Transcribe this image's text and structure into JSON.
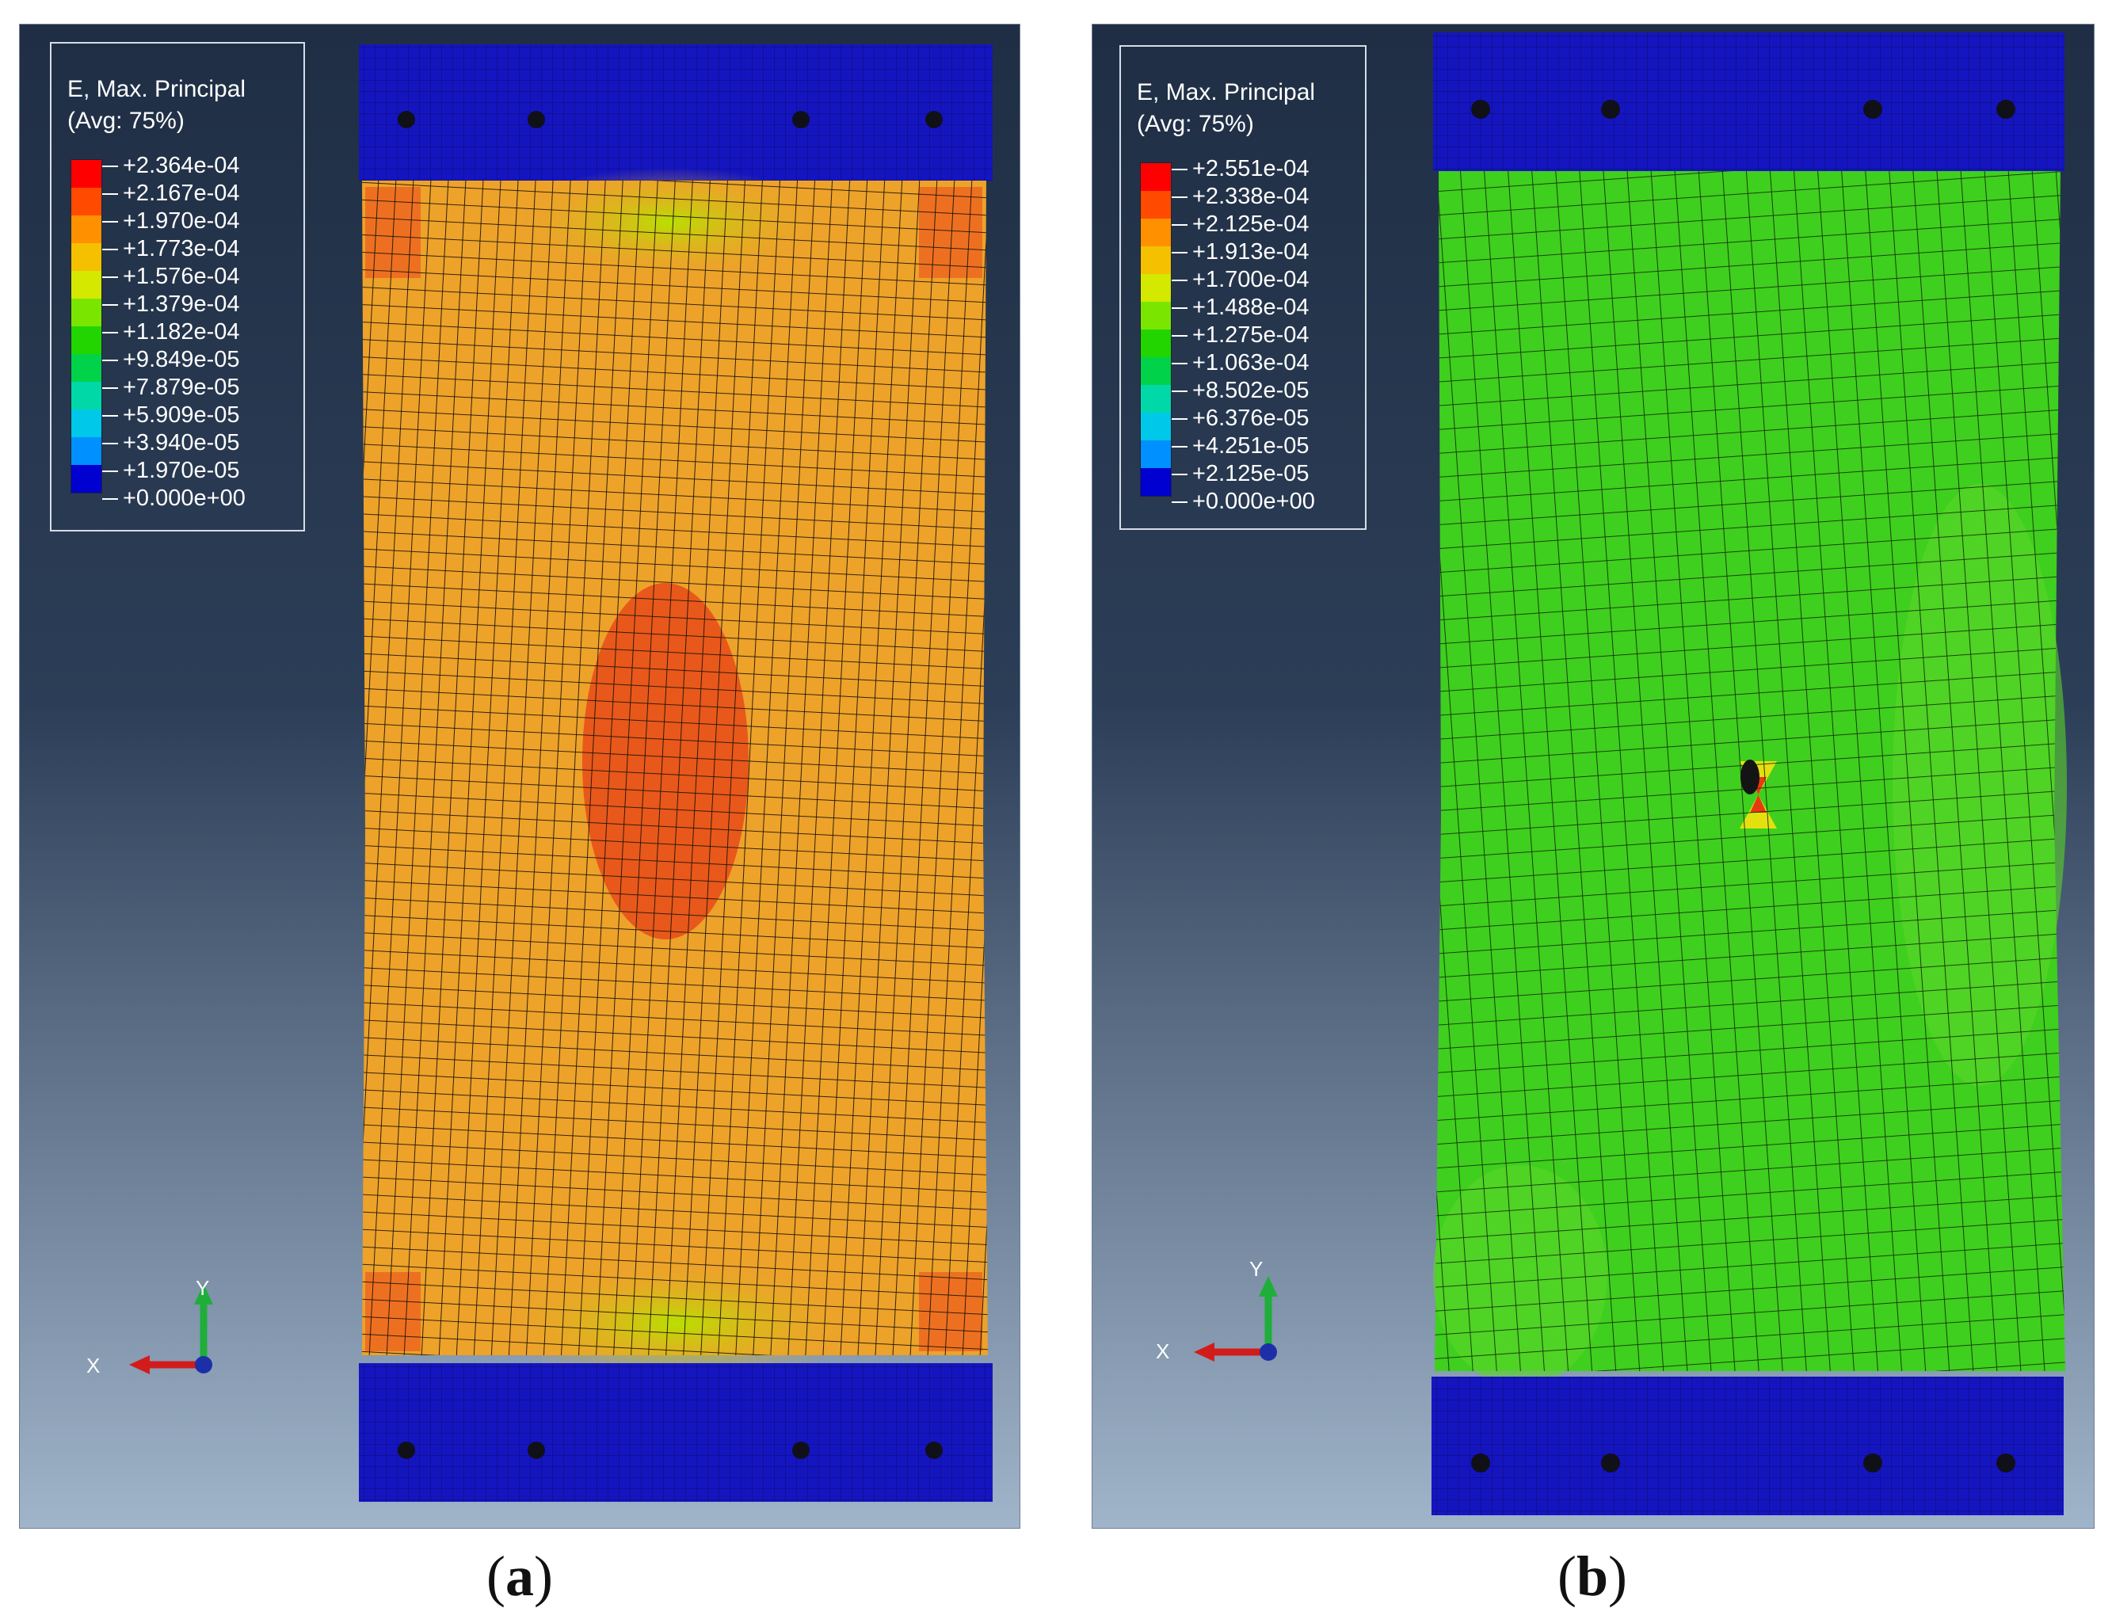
{
  "colors": {
    "bg_top": "#1f2e44",
    "bg_bottom": "#a0b4ca",
    "clamp": "#1515c0",
    "mesh_line": "#1a1208",
    "legend_scale": [
      "#ff0000",
      "#ff4a00",
      "#ff9000",
      "#f4c000",
      "#d4e800",
      "#7ae600",
      "#22d400",
      "#00d24a",
      "#00d8a8",
      "#00c8e8",
      "#0090ff",
      "#2444ff",
      "#0000d0"
    ]
  },
  "panels": [
    {
      "id": "a",
      "caption_open": "(",
      "caption_letter": "a",
      "caption_close": ")",
      "legend_title_line1": "E, Max. Principal",
      "legend_title_line2": "(Avg: 75%)",
      "legend_values": [
        "+2.364e-04",
        "+2.167e-04",
        "+1.970e-04",
        "+1.773e-04",
        "+1.576e-04",
        "+1.379e-04",
        "+1.182e-04",
        "+9.849e-05",
        "+7.879e-05",
        "+5.909e-05",
        "+3.940e-05",
        "+1.970e-05",
        "+0.000e+00"
      ],
      "axis_y": "Y",
      "axis_x": "X",
      "field_color": "#eda22a",
      "hotspot_color": "#e8581a",
      "has_hole": false
    },
    {
      "id": "b",
      "caption_open": "(",
      "caption_letter": "b",
      "caption_close": ")",
      "legend_title_line1": "E, Max. Principal",
      "legend_title_line2": "(Avg: 75%)",
      "legend_values": [
        "+2.551e-04",
        "+2.338e-04",
        "+2.125e-04",
        "+1.913e-04",
        "+1.700e-04",
        "+1.488e-04",
        "+1.275e-04",
        "+1.063e-04",
        "+8.502e-05",
        "+6.376e-05",
        "+4.251e-05",
        "+2.125e-05",
        "+0.000e+00"
      ],
      "axis_y": "Y",
      "axis_x": "X",
      "field_color": "#3fcf1e",
      "hotspot_color": "#e83a10",
      "has_hole": true
    }
  ]
}
